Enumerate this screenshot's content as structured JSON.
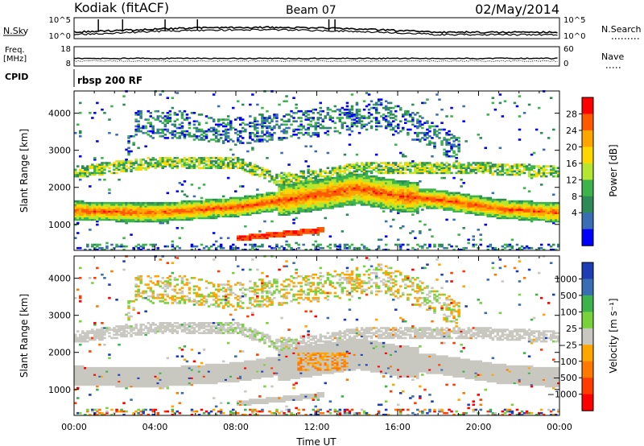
{
  "header": {
    "station": "Kodiak (fitACF)",
    "beam": "Beam 07",
    "date": "02/May/2014"
  },
  "top_panels": {
    "nsky_label": "N.Sky",
    "nsky_ticks": [
      "10^5",
      "10^0"
    ],
    "nsearch_label": "N.Search",
    "nsearch_ticks": [
      "10^5",
      "10^0"
    ],
    "freq_label_line1": "Freq.",
    "freq_label_line2": "[MHz]",
    "freq_ticks": [
      "18",
      "8"
    ],
    "nave_label": "Nave",
    "nave_ticks": [
      "60",
      "0"
    ],
    "cpid_label": "CPID",
    "cpid_text": "rbsp 200 RF"
  },
  "chart_data": [
    {
      "type": "heatmap",
      "title": "",
      "xlabel": "",
      "ylabel": "Slant Range [km]",
      "x_range_hours": [
        0,
        24
      ],
      "ylim_km": [
        300,
        4600
      ],
      "yticks": [
        "4000",
        "3000",
        "2000",
        "1000"
      ],
      "colorbar": {
        "label": "Power [dB]",
        "ticks": [
          "28",
          "24",
          "20",
          "16",
          "12",
          "8",
          "4"
        ],
        "colors": [
          "#ff0000",
          "#ff5a00",
          "#ffa500",
          "#ffd700",
          "#b4e632",
          "#3cb44b",
          "#2e8b57",
          "#3a6eb4",
          "#0000ff"
        ]
      }
    },
    {
      "type": "heatmap",
      "title": "",
      "xlabel": "Time UT",
      "ylabel": "Slant Range [km]",
      "x_range_hours": [
        0,
        24
      ],
      "ylim_km": [
        300,
        4600
      ],
      "yticks": [
        "4000",
        "3000",
        "2000",
        "1000"
      ],
      "xticks": [
        "00:00",
        "04:00",
        "08:00",
        "12:00",
        "16:00",
        "20:00",
        "00:00"
      ],
      "colorbar": {
        "label": "Velocity [m s⁻¹]",
        "ticks": [
          "1000",
          "500",
          "100",
          "25",
          "−25",
          "−100",
          "−500",
          "−1000"
        ],
        "colors": [
          "#1e3cb4",
          "#3a6eb4",
          "#3cb44b",
          "#78d23c",
          "#c8c8c0",
          "#ffa500",
          "#ff7800",
          "#ff3c00",
          "#ff0000"
        ]
      }
    }
  ]
}
